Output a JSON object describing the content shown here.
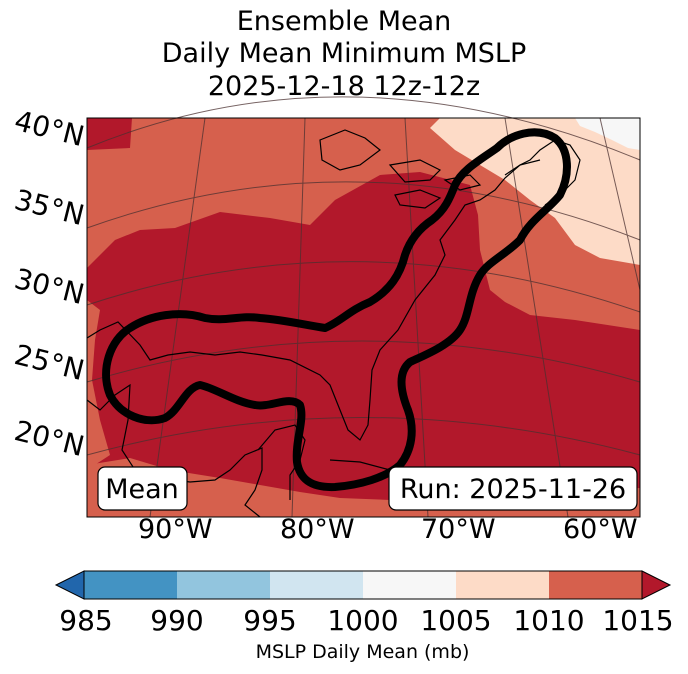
{
  "title": {
    "line1": "Ensemble Mean",
    "line2": "Daily Mean Minimum MSLP",
    "line3": "2025-12-18 12z-12z"
  },
  "latitude_labels": [
    "40°N",
    "35°N",
    "30°N",
    "25°N",
    "20°N"
  ],
  "longitude_labels": [
    "90°W",
    "80°W",
    "70°W",
    "60°W"
  ],
  "boxes": {
    "left": "Mean",
    "right": "Run: 2025-11-26"
  },
  "colorbar": {
    "ticks": [
      "985",
      "990",
      "995",
      "1000",
      "1005",
      "1010",
      "1015"
    ],
    "label": "MSLP Daily Mean (mb)",
    "colors": {
      "below": "#2166ac",
      "985-990": "#4393c3",
      "990-995": "#92c5de",
      "995-1000": "#d1e5f0",
      "1000-1005": "#f7f7f7",
      "1005-1010": "#fddbc7",
      "1010-1015": "#d6604d",
      "above": "#b2182b"
    }
  },
  "map_colors": {
    "deep": "#b2182b",
    "mid": "#d6604d",
    "light": "#fddbc7",
    "pale": "#f7f7f7",
    "contour": "#000000"
  }
}
